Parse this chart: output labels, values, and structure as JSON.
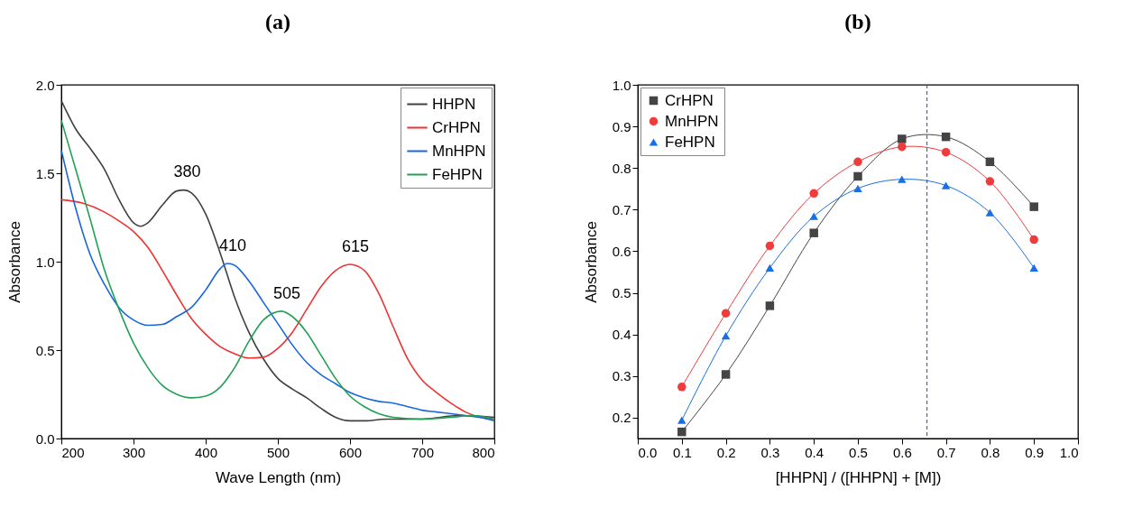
{
  "chart_data": [
    {
      "type": "line",
      "title": "(a)",
      "xlabel": "Wave Length (nm)",
      "ylabel": "Absorbance",
      "xlim": [
        200,
        800
      ],
      "xticks": [
        200,
        300,
        400,
        500,
        600,
        700,
        800
      ],
      "ylim": [
        0,
        2
      ],
      "yticks": [
        {
          "value": 0,
          "label": "0.0"
        },
        {
          "value": 0.5,
          "label": "0.5"
        },
        {
          "value": 1,
          "label": "1.0"
        },
        {
          "value": 1.5,
          "label": "1.5"
        },
        {
          "value": 2,
          "label": "2.0"
        }
      ],
      "legend": "top right",
      "series": [
        {
          "name": "HHPN",
          "color": "#404040",
          "x": [
            200,
            220,
            240,
            260,
            280,
            300,
            310,
            320,
            340,
            360,
            370,
            380,
            400,
            420,
            440,
            460,
            480,
            500,
            520,
            540,
            560,
            580,
            600,
            620,
            650,
            700,
            750,
            800
          ],
          "values": [
            1.91,
            1.75,
            1.64,
            1.52,
            1.35,
            1.22,
            1.2,
            1.22,
            1.32,
            1.4,
            1.405,
            1.39,
            1.27,
            1.05,
            0.8,
            0.6,
            0.45,
            0.34,
            0.28,
            0.23,
            0.17,
            0.12,
            0.1,
            0.1,
            0.11,
            0.11,
            0.13,
            0.12
          ]
        },
        {
          "name": "CrHPN",
          "color": "#ee3333",
          "x": [
            200,
            230,
            260,
            280,
            300,
            320,
            340,
            360,
            380,
            400,
            420,
            440,
            460,
            480,
            500,
            520,
            540,
            560,
            580,
            600,
            620,
            640,
            660,
            680,
            700,
            720,
            740,
            760,
            780,
            800
          ],
          "values": [
            1.35,
            1.33,
            1.28,
            1.23,
            1.17,
            1.08,
            0.95,
            0.81,
            0.68,
            0.59,
            0.52,
            0.48,
            0.455,
            0.46,
            0.51,
            0.6,
            0.73,
            0.86,
            0.95,
            0.985,
            0.95,
            0.82,
            0.63,
            0.45,
            0.33,
            0.26,
            0.2,
            0.15,
            0.12,
            0.11
          ]
        },
        {
          "name": "MnHPN",
          "color": "#1a66dd",
          "x": [
            200,
            220,
            240,
            260,
            280,
            300,
            320,
            340,
            360,
            380,
            400,
            420,
            430,
            440,
            460,
            480,
            500,
            520,
            540,
            560,
            580,
            600,
            620,
            640,
            660,
            680,
            700,
            720,
            740,
            760,
            780,
            800
          ],
          "values": [
            1.63,
            1.3,
            1.04,
            0.87,
            0.74,
            0.67,
            0.64,
            0.645,
            0.69,
            0.74,
            0.84,
            0.96,
            0.99,
            0.98,
            0.89,
            0.77,
            0.65,
            0.53,
            0.43,
            0.36,
            0.31,
            0.26,
            0.23,
            0.21,
            0.2,
            0.18,
            0.16,
            0.15,
            0.14,
            0.13,
            0.12,
            0.1
          ]
        },
        {
          "name": "FeHPN",
          "color": "#22a055",
          "x": [
            200,
            220,
            240,
            260,
            280,
            300,
            320,
            340,
            360,
            380,
            400,
            420,
            440,
            460,
            480,
            505,
            520,
            540,
            560,
            580,
            600,
            620,
            640,
            660,
            700,
            740,
            770,
            800
          ],
          "values": [
            1.8,
            1.52,
            1.24,
            0.95,
            0.73,
            0.54,
            0.4,
            0.3,
            0.25,
            0.23,
            0.24,
            0.29,
            0.4,
            0.55,
            0.67,
            0.72,
            0.69,
            0.6,
            0.47,
            0.34,
            0.24,
            0.18,
            0.14,
            0.12,
            0.11,
            0.12,
            0.13,
            0.11
          ]
        }
      ],
      "annotations": [
        {
          "text": "380",
          "x": 367,
          "y": 1.41
        },
        {
          "text": "410",
          "x": 430,
          "y": 0.99
        },
        {
          "text": "505",
          "x": 505,
          "y": 0.72
        },
        {
          "text": "615",
          "x": 600,
          "y": 0.985
        }
      ]
    },
    {
      "type": "line",
      "title": "(b)",
      "xlabel": "[HHPN] / ([HHPN] + [M])",
      "ylabel": "Absorbance",
      "xlim": [
        0,
        1
      ],
      "xticks": [
        {
          "value": 0,
          "label": "0.0"
        },
        0.1,
        0.2,
        0.3,
        0.4,
        0.5,
        0.6,
        0.7,
        0.8,
        0.9,
        {
          "value": 1,
          "label": "1.0"
        }
      ],
      "ylim": [
        0.15,
        1
      ],
      "yticks": [
        0.2,
        0.3,
        0.4,
        0.5,
        0.6,
        0.7,
        0.8,
        0.9,
        {
          "value": 1,
          "label": "1.0"
        }
      ],
      "legend": "top left",
      "x": [
        0.1,
        0.2,
        0.3,
        0.4,
        0.5,
        0.6,
        0.7,
        0.8,
        0.9
      ],
      "series": [
        {
          "name": "CrHPN",
          "color": "#444444",
          "marker": "square",
          "values": [
            0.166,
            0.304,
            0.469,
            0.644,
            0.78,
            0.87,
            0.875,
            0.815,
            0.707
          ]
        },
        {
          "name": "MnHPN",
          "color": "#ee3b3b",
          "marker": "circle",
          "values": [
            0.274,
            0.451,
            0.613,
            0.739,
            0.815,
            0.851,
            0.838,
            0.768,
            0.628
          ]
        },
        {
          "name": "FeHPN",
          "color": "#1a6fe0",
          "marker": "triangle",
          "values": [
            0.194,
            0.397,
            0.56,
            0.684,
            0.751,
            0.773,
            0.758,
            0.693,
            0.56
          ]
        }
      ],
      "ref_lines": [
        {
          "axis": "x",
          "value": 0.657,
          "color": "#3333ff",
          "line_style": "dashed"
        }
      ]
    }
  ]
}
